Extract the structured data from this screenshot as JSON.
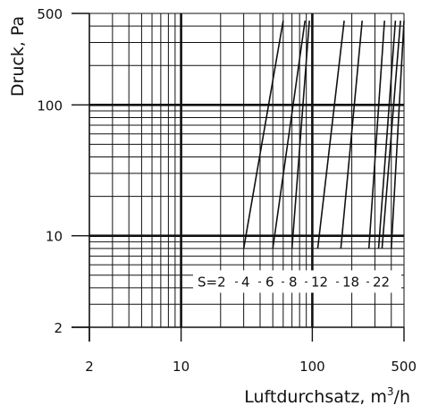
{
  "chart_data": {
    "type": "line",
    "xlabel": "Luftdurchsatz, m³/h",
    "xlabel_parts": {
      "before": "Luftdurchsatz, m",
      "sup": "3",
      "after": "/h"
    },
    "ylabel": "Druck, Pa",
    "x_scale": "log",
    "y_scale": "log",
    "xlim": [
      2,
      500
    ],
    "ylim": [
      2,
      500
    ],
    "x_ticks": [
      {
        "value": 2,
        "label": "2"
      },
      {
        "value": 10,
        "label": "10"
      },
      {
        "value": 100,
        "label": "100"
      },
      {
        "value": 500,
        "label": "500"
      }
    ],
    "y_ticks": [
      {
        "value": 2,
        "label": "2"
      },
      {
        "value": 10,
        "label": "10"
      },
      {
        "value": 100,
        "label": "100"
      },
      {
        "value": 500,
        "label": "500"
      }
    ],
    "grid": true,
    "series_label_prefix": "S=",
    "series": [
      {
        "name": "2",
        "label": "2",
        "x": [
          30,
          60
        ],
        "y": [
          8,
          440
        ]
      },
      {
        "name": "4",
        "label": "4",
        "x": [
          50,
          88
        ],
        "y": [
          8,
          440
        ]
      },
      {
        "name": "6",
        "label": "6",
        "x": [
          70,
          95
        ],
        "y": [
          8,
          440
        ]
      },
      {
        "name": "8",
        "label": "8",
        "x": [
          110,
          175
        ],
        "y": [
          8,
          440
        ]
      },
      {
        "name": "12",
        "label": "12",
        "x": [
          165,
          240
        ],
        "y": [
          8,
          440
        ]
      },
      {
        "name": "18",
        "label": "18",
        "x": [
          270,
          355
        ],
        "y": [
          8,
          440
        ]
      },
      {
        "name": "22",
        "label": "22",
        "x": [
          340,
          470
        ],
        "y": [
          8,
          440
        ]
      }
    ],
    "extra_lines": [
      {
        "x": [
          320,
          430
        ],
        "y": [
          8,
          440
        ]
      },
      {
        "x": [
          400,
          500
        ],
        "y": [
          8,
          440
        ]
      }
    ]
  }
}
